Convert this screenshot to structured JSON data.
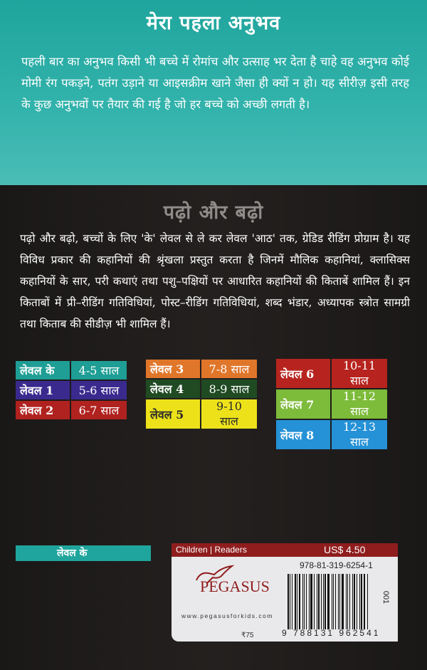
{
  "top": {
    "title": "मेरा पहला अनुभव",
    "paragraph": "पहली बार का अनुभव किसी भी बच्चे में रोमांच और उत्साह भर देता है चाहे वह अनुभव कोई मोमी रंग पकड़ने, पतंग उड़ाने या आइसक्रीम खाने जैसा ही क्यों न हो। यह सीरीज़ इसी तरह के कुछ अनुभवों पर तैयार की गई है जो हर बच्चे को अच्छी लगती है।"
  },
  "series": {
    "title": "पढ़ो और बढ़ो",
    "paragraph": "पढ़ो और बढ़ो, बच्चों के लिए 'के' लेवल से ले कर लेवल 'आठ' तक, ग्रेडिड रीडिंग प्रोग्राम है। यह विविध प्रकार की कहानियों की श्रृंखला प्रस्तुत करता है जिनमें मौलिक कहानियां, क्लासिक्स कहानियों के सार, परी कथाएं तथा पशु–पक्षियों पर आधारित कहानियों की किताबें शामिल हैं। इन किताबों में प्री–रीडिंग गतिविधियां, पोस्ट–रीडिंग गतिविधियां, शब्द भंडार, अध्यापक स्त्रोत सामग्री तथा किताब की सीडीज़ भी शामिल हैं।"
  },
  "levels": [
    [
      {
        "level": "लेवल के",
        "age": "4-5 साल",
        "color": "#1e9e94"
      },
      {
        "level": "लेवल 1",
        "age": "5-6 साल",
        "color": "#3a2a8e"
      },
      {
        "level": "लेवल 2",
        "age": "6-7 साल",
        "color": "#b0221f"
      }
    ],
    [
      {
        "level": "लेवल 3",
        "age": "7-8 साल",
        "color": "#e0762a"
      },
      {
        "level": "लेवल 4",
        "age": "8-9 साल",
        "color": "#1f4a22"
      },
      {
        "level": "लेवल 5",
        "age": "9-10 साल",
        "color": "#ede21a"
      }
    ],
    [
      {
        "level": "लेवल 6",
        "age": "10-11 साल",
        "color": "#b7241f"
      },
      {
        "level": "लेवल 7",
        "age": "11-12 साल",
        "color": "#7dbb3a"
      },
      {
        "level": "लेवल 8",
        "age": "12-13 साल",
        "color": "#2591d6"
      }
    ]
  ],
  "level_tag": "लेवल के",
  "price_label": {
    "category": "Children | Readers",
    "usd_price": "US$ 4.50",
    "isbn": "978-81-319-6254-1",
    "publisher": "PEGASUS",
    "website": "www.pegasusforkids.com",
    "inr_price": "₹75",
    "barcode_digits": "9 788131 962541",
    "code": "001"
  }
}
